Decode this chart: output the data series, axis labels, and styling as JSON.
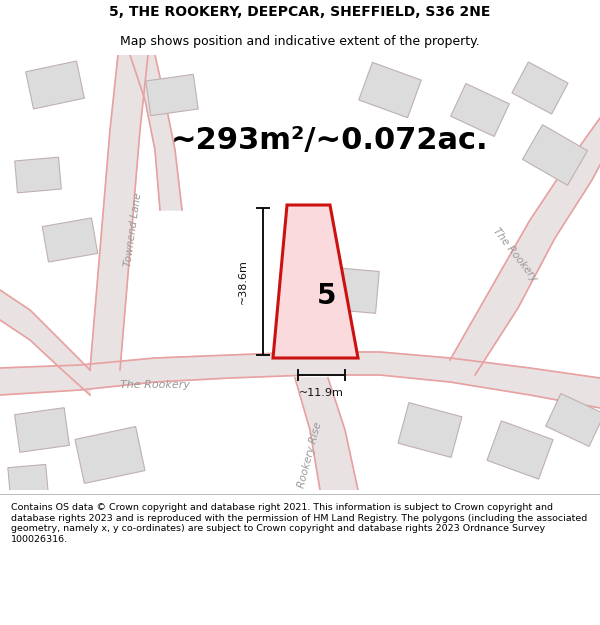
{
  "title_line1": "5, THE ROOKERY, DEEPCAR, SHEFFIELD, S36 2NE",
  "title_line2": "Map shows position and indicative extent of the property.",
  "area_text": "~293m²/~0.072ac.",
  "footer_text": "Contains OS data © Crown copyright and database right 2021. This information is subject to Crown copyright and database rights 2023 and is reproduced with the permission of HM Land Registry. The polygons (including the associated geometry, namely x, y co-ordinates) are subject to Crown copyright and database rights 2023 Ordnance Survey 100026316.",
  "map_bg": "#eeebeb",
  "road_fill": "#e8e2e2",
  "road_edge": "#e8a0a0",
  "building_fill": "#dcdcdc",
  "building_edge": "#c8b8b8",
  "plot_fill": "#fadadd",
  "plot_edge": "#cc1111",
  "dim_color": "#111111",
  "label_38m": "~38.6m",
  "label_11m": "~11.9m",
  "plot_number": "5",
  "title_fontsize": 10,
  "subtitle_fontsize": 9,
  "area_fontsize": 22,
  "footer_fontsize": 6.8
}
